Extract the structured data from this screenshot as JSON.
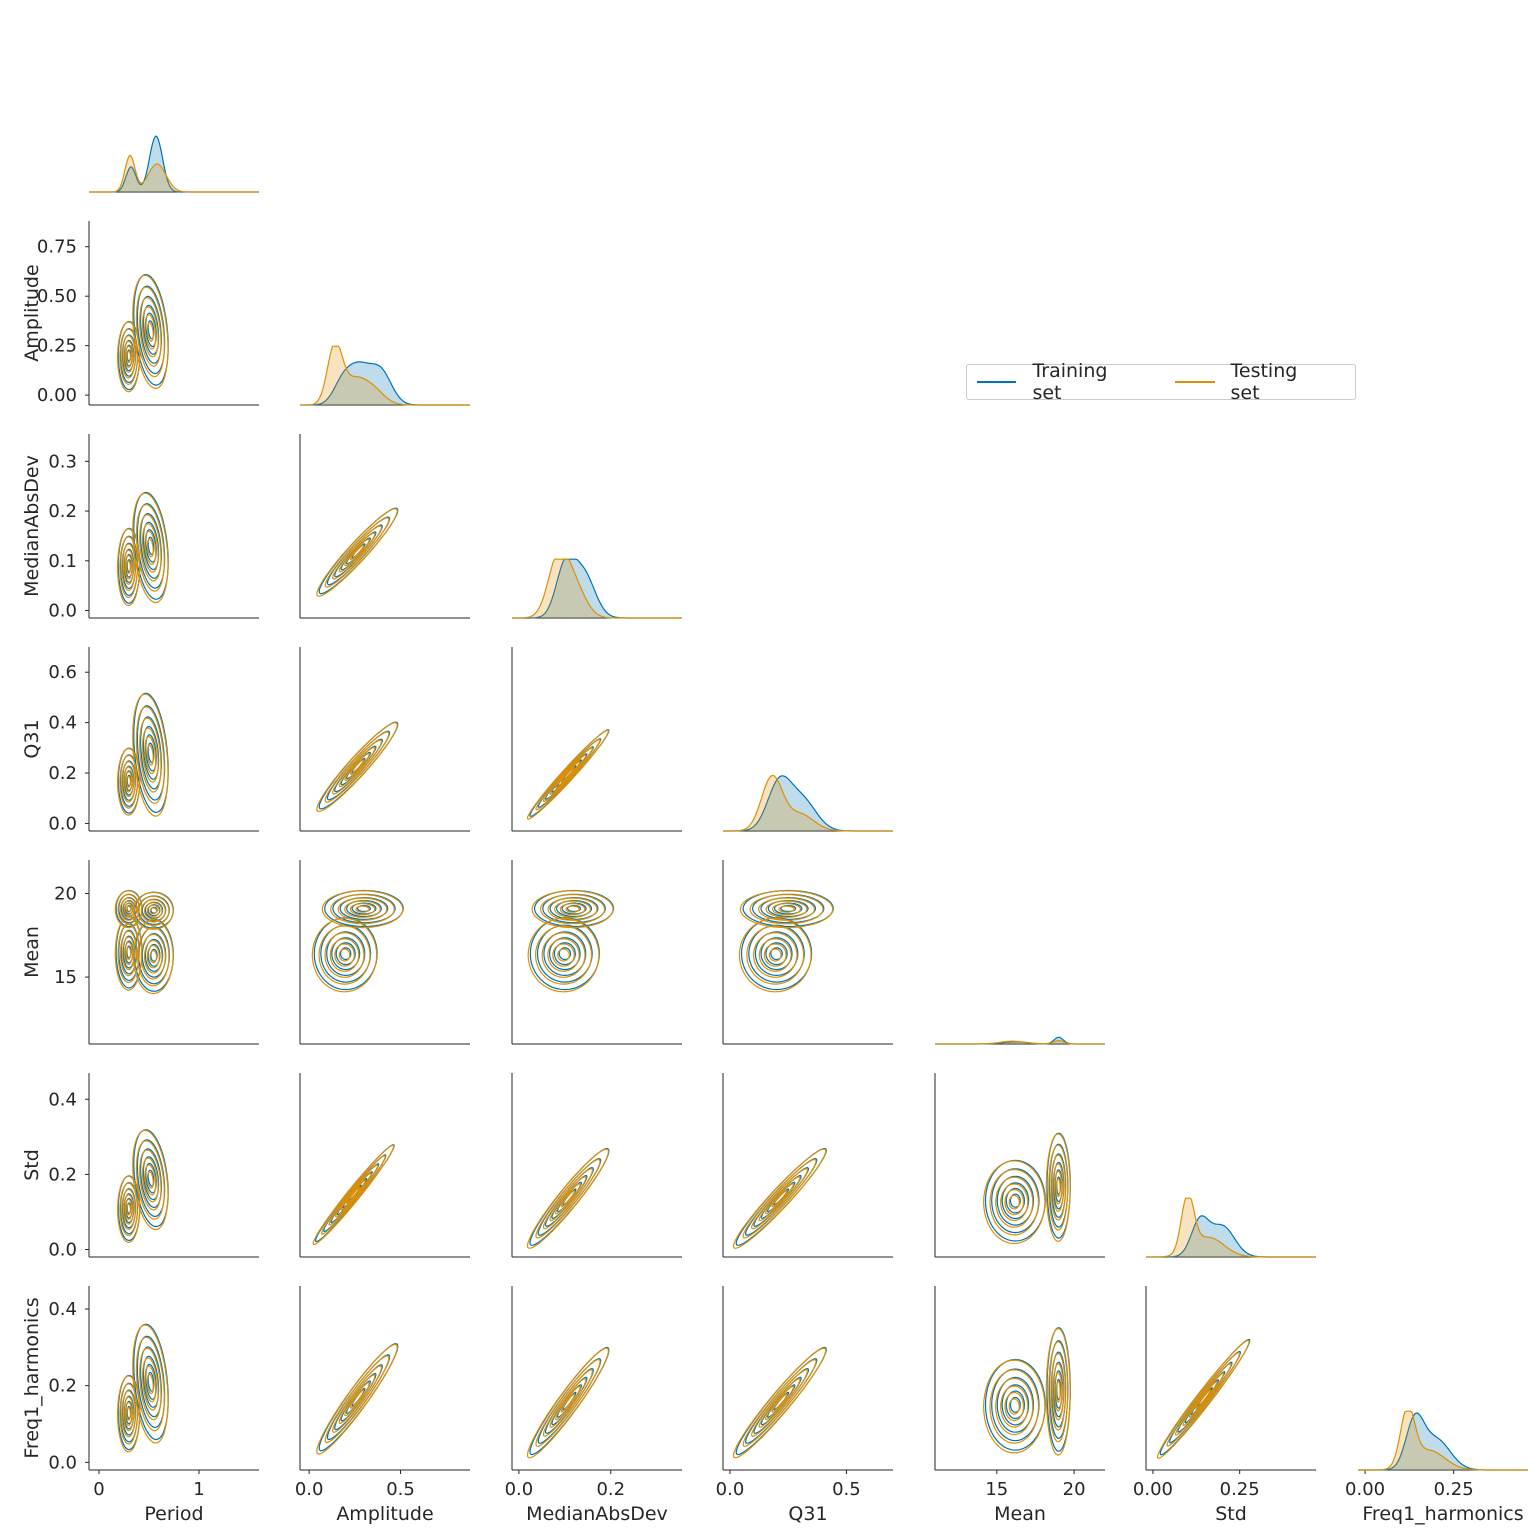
{
  "legend": {
    "placement": "center-right",
    "entries": [
      {
        "label": "Training set",
        "color": "#0173b2"
      },
      {
        "label": "Testing set",
        "color": "#de8f05"
      }
    ]
  },
  "chart_data": {
    "type": "pairplot-kde-corner",
    "variables": [
      "Period",
      "Amplitude",
      "MedianAbsDev",
      "Q31",
      "Mean",
      "Std",
      "Freq1_harmonics"
    ],
    "series": [
      {
        "name": "Training set",
        "color": "#0173b2"
      },
      {
        "name": "Testing set",
        "color": "#de8f05"
      }
    ],
    "axes": {
      "Period": {
        "range": [
          -0.1,
          1.6
        ],
        "ticks": [
          0,
          1
        ],
        "tick_labels": [
          "0",
          "1"
        ]
      },
      "Amplitude": {
        "range": [
          -0.05,
          0.88
        ],
        "ticks": [
          0.0,
          0.5
        ],
        "tick_labels": [
          "0.0",
          "0.5"
        ],
        "y_ticks": [
          0.0,
          0.25,
          0.5,
          0.75
        ],
        "y_tick_labels": [
          "0.00",
          "0.25",
          "0.50",
          "0.75"
        ]
      },
      "MedianAbsDev": {
        "range": [
          -0.015,
          0.355
        ],
        "ticks": [
          0.0,
          0.2
        ],
        "tick_labels": [
          "0.0",
          "0.2"
        ],
        "y_ticks": [
          0.0,
          0.1,
          0.2,
          0.3
        ],
        "y_tick_labels": [
          "0.0",
          "0.1",
          "0.2",
          "0.3"
        ]
      },
      "Q31": {
        "range": [
          -0.03,
          0.7
        ],
        "ticks": [
          0.0,
          0.5
        ],
        "tick_labels": [
          "0.0",
          "0.5"
        ],
        "y_ticks": [
          0.0,
          0.2,
          0.4,
          0.6
        ],
        "y_tick_labels": [
          "0.0",
          "0.2",
          "0.4",
          "0.6"
        ]
      },
      "Mean": {
        "range": [
          11,
          22
        ],
        "ticks": [
          15,
          20
        ],
        "tick_labels": [
          "15",
          "20"
        ],
        "y_ticks": [
          15,
          20
        ],
        "y_tick_labels": [
          "15",
          "20"
        ]
      },
      "Std": {
        "range": [
          -0.02,
          0.47
        ],
        "ticks": [
          0.0,
          0.25
        ],
        "tick_labels": [
          "0.00",
          "0.25"
        ],
        "y_ticks": [
          0.0,
          0.2,
          0.4
        ],
        "y_tick_labels": [
          "0.0",
          "0.2",
          "0.4"
        ]
      },
      "Freq1_harmonics": {
        "range": [
          -0.02,
          0.46
        ],
        "ticks": [
          0.0,
          0.25
        ],
        "tick_labels": [
          "0.00",
          "0.25"
        ],
        "y_ticks": [
          0.0,
          0.2,
          0.4
        ],
        "y_tick_labels": [
          "0.0",
          "0.2",
          "0.4"
        ]
      }
    },
    "marginals": {
      "Period": [
        {
          "series": "Training set",
          "peaks": [
            {
              "x": 0.32,
              "height": 0.45,
              "width": 0.05
            },
            {
              "x": 0.57,
              "height": 1.0,
              "width": 0.065
            }
          ]
        },
        {
          "series": "Testing set",
          "peaks": [
            {
              "x": 0.31,
              "height": 0.65,
              "width": 0.05
            },
            {
              "x": 0.58,
              "height": 0.5,
              "width": 0.09
            }
          ]
        }
      ],
      "Amplitude": [
        {
          "series": "Training set",
          "peaks": [
            {
              "x": 0.18,
              "height": 0.35,
              "width": 0.05
            },
            {
              "x": 0.27,
              "height": 0.62,
              "width": 0.06
            },
            {
              "x": 0.39,
              "height": 0.6,
              "width": 0.06
            }
          ]
        },
        {
          "series": "Testing set",
          "peaks": [
            {
              "x": 0.14,
              "height": 1.0,
              "width": 0.04
            },
            {
              "x": 0.25,
              "height": 0.45,
              "width": 0.07
            },
            {
              "x": 0.36,
              "height": 0.2,
              "width": 0.06
            }
          ]
        }
      ],
      "MedianAbsDev": [
        {
          "series": "Training set",
          "peaks": [
            {
              "x": 0.1,
              "height": 0.85,
              "width": 0.02
            },
            {
              "x": 0.14,
              "height": 0.8,
              "width": 0.025
            }
          ]
        },
        {
          "series": "Testing set",
          "peaks": [
            {
              "x": 0.085,
              "height": 1.0,
              "width": 0.022
            },
            {
              "x": 0.12,
              "height": 0.55,
              "width": 0.025
            }
          ]
        }
      ],
      "Q31": [
        {
          "series": "Training set",
          "peaks": [
            {
              "x": 0.21,
              "height": 0.82,
              "width": 0.05
            },
            {
              "x": 0.31,
              "height": 0.55,
              "width": 0.06
            }
          ]
        },
        {
          "series": "Testing set",
          "peaks": [
            {
              "x": 0.18,
              "height": 0.95,
              "width": 0.045
            },
            {
              "x": 0.3,
              "height": 0.3,
              "width": 0.06
            }
          ]
        }
      ],
      "Mean": [
        {
          "series": "Training set",
          "peaks": [
            {
              "x": 16.2,
              "height": 0.04,
              "width": 0.8
            },
            {
              "x": 19.0,
              "height": 0.12,
              "width": 0.3
            }
          ]
        },
        {
          "series": "Testing set",
          "peaks": [
            {
              "x": 16.0,
              "height": 0.05,
              "width": 0.8
            },
            {
              "x": 19.0,
              "height": 0.06,
              "width": 0.35
            }
          ]
        }
      ],
      "Std": [
        {
          "series": "Training set",
          "peaks": [
            {
              "x": 0.135,
              "height": 0.62,
              "width": 0.025
            },
            {
              "x": 0.2,
              "height": 0.55,
              "width": 0.035
            }
          ]
        },
        {
          "series": "Testing set",
          "peaks": [
            {
              "x": 0.1,
              "height": 1.0,
              "width": 0.018
            },
            {
              "x": 0.16,
              "height": 0.35,
              "width": 0.045
            }
          ]
        }
      ],
      "Freq1_harmonics": [
        {
          "series": "Training set",
          "peaks": [
            {
              "x": 0.14,
              "height": 0.82,
              "width": 0.025
            },
            {
              "x": 0.2,
              "height": 0.55,
              "width": 0.04
            }
          ]
        },
        {
          "series": "Testing set",
          "peaks": [
            {
              "x": 0.12,
              "height": 1.0,
              "width": 0.02
            },
            {
              "x": 0.18,
              "height": 0.35,
              "width": 0.045
            }
          ]
        }
      ]
    },
    "joint_clusters": [
      {
        "x": "Period",
        "y": "Amplitude",
        "clusters": [
          {
            "cx": 0.3,
            "cy": 0.2,
            "sx": 0.05,
            "sy": 0.08,
            "rho": 0
          },
          {
            "cx": 0.52,
            "cy": 0.33,
            "sx": 0.08,
            "sy": 0.13,
            "rho": -0.3
          }
        ]
      },
      {
        "x": "Period",
        "y": "MedianAbsDev",
        "clusters": [
          {
            "cx": 0.3,
            "cy": 0.09,
            "sx": 0.05,
            "sy": 0.035,
            "rho": 0
          },
          {
            "cx": 0.52,
            "cy": 0.13,
            "sx": 0.08,
            "sy": 0.05,
            "rho": -0.3
          }
        ]
      },
      {
        "x": "Period",
        "y": "Q31",
        "clusters": [
          {
            "cx": 0.3,
            "cy": 0.17,
            "sx": 0.05,
            "sy": 0.06,
            "rho": 0
          },
          {
            "cx": 0.52,
            "cy": 0.28,
            "sx": 0.08,
            "sy": 0.11,
            "rho": -0.3
          }
        ]
      },
      {
        "x": "Period",
        "y": "Mean",
        "clusters": [
          {
            "cx": 0.3,
            "cy": 19.1,
            "sx": 0.06,
            "sy": 0.5,
            "rho": 0
          },
          {
            "cx": 0.55,
            "cy": 19.0,
            "sx": 0.09,
            "sy": 0.5,
            "rho": 0
          },
          {
            "cx": 0.3,
            "cy": 16.5,
            "sx": 0.06,
            "sy": 1.0,
            "rho": 0
          },
          {
            "cx": 0.55,
            "cy": 16.3,
            "sx": 0.09,
            "sy": 1.0,
            "rho": 0
          }
        ]
      },
      {
        "x": "Period",
        "y": "Std",
        "clusters": [
          {
            "cx": 0.3,
            "cy": 0.11,
            "sx": 0.05,
            "sy": 0.04,
            "rho": 0
          },
          {
            "cx": 0.52,
            "cy": 0.19,
            "sx": 0.08,
            "sy": 0.06,
            "rho": -0.3
          }
        ]
      },
      {
        "x": "Period",
        "y": "Freq1_harmonics",
        "clusters": [
          {
            "cx": 0.3,
            "cy": 0.13,
            "sx": 0.05,
            "sy": 0.045,
            "rho": 0
          },
          {
            "cx": 0.52,
            "cy": 0.21,
            "sx": 0.08,
            "sy": 0.07,
            "rho": -0.3
          }
        ]
      },
      {
        "x": "Amplitude",
        "y": "MedianAbsDev",
        "clusters": [
          {
            "cx": 0.27,
            "cy": 0.12,
            "sx": 0.1,
            "sy": 0.04,
            "rho": 0.95
          }
        ]
      },
      {
        "x": "Amplitude",
        "y": "Q31",
        "clusters": [
          {
            "cx": 0.27,
            "cy": 0.23,
            "sx": 0.1,
            "sy": 0.08,
            "rho": 0.95
          }
        ]
      },
      {
        "x": "Amplitude",
        "y": "Mean",
        "clusters": [
          {
            "cx": 0.3,
            "cy": 19.1,
            "sx": 0.1,
            "sy": 0.5,
            "rho": 0
          },
          {
            "cx": 0.2,
            "cy": 16.4,
            "sx": 0.08,
            "sy": 1.0,
            "rho": 0
          }
        ]
      },
      {
        "x": "Amplitude",
        "y": "Std",
        "clusters": [
          {
            "cx": 0.25,
            "cy": 0.15,
            "sx": 0.1,
            "sy": 0.06,
            "rho": 0.98
          }
        ]
      },
      {
        "x": "Amplitude",
        "y": "Freq1_harmonics",
        "clusters": [
          {
            "cx": 0.27,
            "cy": 0.17,
            "sx": 0.1,
            "sy": 0.065,
            "rho": 0.95
          }
        ]
      },
      {
        "x": "MedianAbsDev",
        "y": "Q31",
        "clusters": [
          {
            "cx": 0.11,
            "cy": 0.2,
            "sx": 0.04,
            "sy": 0.08,
            "rho": 0.98
          }
        ]
      },
      {
        "x": "MedianAbsDev",
        "y": "Mean",
        "clusters": [
          {
            "cx": 0.12,
            "cy": 19.1,
            "sx": 0.04,
            "sy": 0.5,
            "rho": 0
          },
          {
            "cx": 0.1,
            "cy": 16.4,
            "sx": 0.035,
            "sy": 1.0,
            "rho": 0
          }
        ]
      },
      {
        "x": "MedianAbsDev",
        "y": "Std",
        "clusters": [
          {
            "cx": 0.11,
            "cy": 0.14,
            "sx": 0.04,
            "sy": 0.06,
            "rho": 0.95
          }
        ]
      },
      {
        "x": "MedianAbsDev",
        "y": "Freq1_harmonics",
        "clusters": [
          {
            "cx": 0.11,
            "cy": 0.16,
            "sx": 0.04,
            "sy": 0.065,
            "rho": 0.95
          }
        ]
      },
      {
        "x": "Q31",
        "y": "Mean",
        "clusters": [
          {
            "cx": 0.25,
            "cy": 19.1,
            "sx": 0.09,
            "sy": 0.5,
            "rho": 0
          },
          {
            "cx": 0.2,
            "cy": 16.4,
            "sx": 0.07,
            "sy": 1.0,
            "rho": 0
          }
        ]
      },
      {
        "x": "Q31",
        "y": "Std",
        "clusters": [
          {
            "cx": 0.22,
            "cy": 0.14,
            "sx": 0.09,
            "sy": 0.06,
            "rho": 0.96
          }
        ]
      },
      {
        "x": "Q31",
        "y": "Freq1_harmonics",
        "clusters": [
          {
            "cx": 0.22,
            "cy": 0.16,
            "sx": 0.09,
            "sy": 0.065,
            "rho": 0.96
          }
        ]
      },
      {
        "x": "Mean",
        "y": "Std",
        "clusters": [
          {
            "cx": 16.2,
            "cy": 0.13,
            "sx": 0.9,
            "sy": 0.05,
            "rho": 0
          },
          {
            "cx": 19.0,
            "cy": 0.17,
            "sx": 0.35,
            "sy": 0.065,
            "rho": 0
          }
        ]
      },
      {
        "x": "Mean",
        "y": "Freq1_harmonics",
        "clusters": [
          {
            "cx": 16.2,
            "cy": 0.15,
            "sx": 0.9,
            "sy": 0.055,
            "rho": 0
          },
          {
            "cx": 19.0,
            "cy": 0.19,
            "sx": 0.35,
            "sy": 0.075,
            "rho": 0
          }
        ]
      },
      {
        "x": "Std",
        "y": "Freq1_harmonics",
        "clusters": [
          {
            "cx": 0.15,
            "cy": 0.17,
            "sx": 0.06,
            "sy": 0.07,
            "rho": 0.98
          }
        ]
      }
    ]
  }
}
